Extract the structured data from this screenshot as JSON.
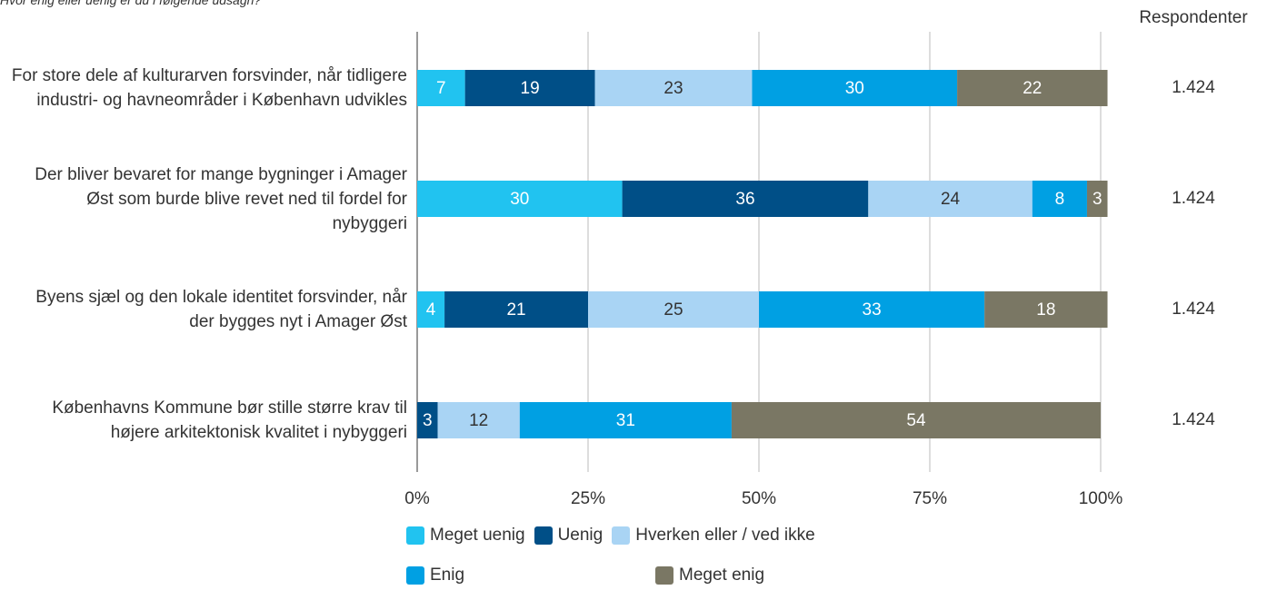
{
  "chart_data": {
    "type": "stacked-bar-horizontal",
    "title": "Hvor enig eller uenig er du i følgende udsagn?",
    "categories": [
      "For store dele af kulturarven forsvinder, når tidligere industri- og havneområder i København udvikles",
      "Der bliver bevaret for mange bygninger i Amager Øst som burde blive revet ned til fordel for nybyggeri",
      "Byens sjæl og den lokale identitet forsvinder, når der bygges nyt i Amager Øst",
      "Københavns Kommune bør stille større krav til højere arkitektonisk kvalitet i nybyggeri"
    ],
    "series": [
      {
        "name": "Meget uenig",
        "color": "#21c3f0",
        "text_color": "#ffffff",
        "values": [
          7,
          30,
          4,
          null
        ]
      },
      {
        "name": "Uenig",
        "color": "#004f87",
        "text_color": "#ffffff",
        "values": [
          19,
          36,
          21,
          3
        ]
      },
      {
        "name": "Hverken eller / ved ikke",
        "color": "#a9d4f4",
        "text_color": "#333333",
        "values": [
          23,
          24,
          25,
          12
        ]
      },
      {
        "name": "Enig",
        "color": "#00a0e3",
        "text_color": "#ffffff",
        "values": [
          30,
          8,
          33,
          31
        ]
      },
      {
        "name": "Meget enig",
        "color": "#7a7764",
        "text_color": "#ffffff",
        "values": [
          22,
          3,
          18,
          54
        ]
      }
    ],
    "xlim": [
      0,
      100
    ],
    "xticks": [
      {
        "value": 0,
        "label": "0%"
      },
      {
        "value": 25,
        "label": "25%"
      },
      {
        "value": 50,
        "label": "50%"
      },
      {
        "value": 75,
        "label": "75%"
      },
      {
        "value": 100,
        "label": "100%"
      }
    ],
    "grid": true,
    "respondents_title": "Respondenter",
    "respondents": [
      "1.424",
      "1.424",
      "1.424",
      "1.424"
    ]
  }
}
